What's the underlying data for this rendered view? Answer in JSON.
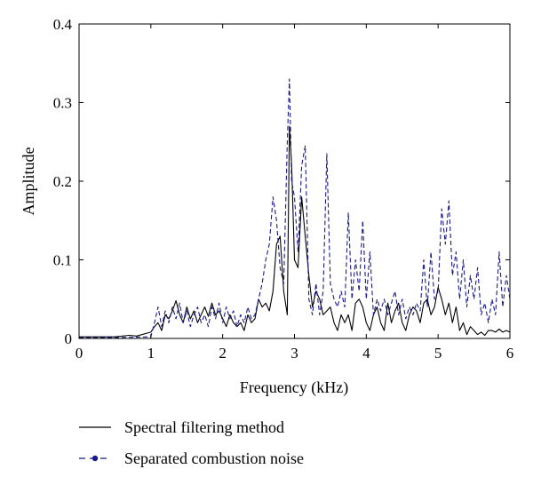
{
  "chart_data": {
    "type": "line",
    "title": "",
    "xlabel": "Frequency (kHz)",
    "ylabel": "Amplitude",
    "xlim": [
      0,
      6
    ],
    "ylim": [
      0,
      0.4
    ],
    "xticks": [
      "0",
      "1",
      "2",
      "3",
      "4",
      "5",
      "6"
    ],
    "yticks": [
      "0",
      "0.1",
      "0.2",
      "0.3",
      "0.4"
    ],
    "grid": false,
    "legend_position": "below",
    "series": [
      {
        "name": "Spectral filtering method",
        "color": "#000000",
        "style": "solid",
        "x": [
          0,
          0.5,
          0.7,
          0.8,
          1.0,
          1.05,
          1.1,
          1.15,
          1.2,
          1.25,
          1.3,
          1.35,
          1.4,
          1.45,
          1.5,
          1.55,
          1.6,
          1.65,
          1.7,
          1.75,
          1.8,
          1.85,
          1.9,
          1.95,
          2.0,
          2.05,
          2.1,
          2.15,
          2.2,
          2.25,
          2.3,
          2.35,
          2.4,
          2.45,
          2.5,
          2.55,
          2.6,
          2.65,
          2.7,
          2.75,
          2.8,
          2.85,
          2.9,
          2.93,
          2.96,
          3.0,
          3.05,
          3.1,
          3.15,
          3.2,
          3.25,
          3.3,
          3.35,
          3.4,
          3.45,
          3.5,
          3.55,
          3.6,
          3.65,
          3.7,
          3.75,
          3.8,
          3.85,
          3.9,
          3.95,
          4.0,
          4.05,
          4.1,
          4.15,
          4.2,
          4.25,
          4.3,
          4.35,
          4.4,
          4.45,
          4.5,
          4.55,
          4.6,
          4.65,
          4.7,
          4.75,
          4.8,
          4.85,
          4.9,
          4.95,
          5.0,
          5.05,
          5.1,
          5.15,
          5.2,
          5.25,
          5.3,
          5.35,
          5.4,
          5.45,
          5.5,
          5.55,
          5.6,
          5.65,
          5.7,
          5.75,
          5.8,
          5.85,
          5.9,
          5.95,
          6.0
        ],
        "y": [
          0.002,
          0.002,
          0.004,
          0.003,
          0.008,
          0.015,
          0.02,
          0.01,
          0.03,
          0.025,
          0.035,
          0.048,
          0.03,
          0.02,
          0.04,
          0.025,
          0.035,
          0.02,
          0.03,
          0.04,
          0.028,
          0.045,
          0.03,
          0.035,
          0.025,
          0.015,
          0.03,
          0.02,
          0.015,
          0.02,
          0.01,
          0.03,
          0.02,
          0.025,
          0.05,
          0.04,
          0.045,
          0.035,
          0.06,
          0.12,
          0.13,
          0.06,
          0.03,
          0.27,
          0.22,
          0.1,
          0.09,
          0.18,
          0.13,
          0.08,
          0.04,
          0.06,
          0.05,
          0.03,
          0.035,
          0.04,
          0.02,
          0.01,
          0.03,
          0.02,
          0.03,
          0.01,
          0.045,
          0.05,
          0.04,
          0.02,
          0.01,
          0.03,
          0.04,
          0.02,
          0.01,
          0.045,
          0.02,
          0.035,
          0.045,
          0.02,
          0.01,
          0.03,
          0.04,
          0.035,
          0.02,
          0.045,
          0.05,
          0.03,
          0.04,
          0.065,
          0.05,
          0.03,
          0.045,
          0.02,
          0.04,
          0.01,
          0.02,
          0.005,
          0.015,
          0.01,
          0.005,
          0.008,
          0.004,
          0.01,
          0.01,
          0.008,
          0.012,
          0.008,
          0.01,
          0.008
        ]
      },
      {
        "name": "Separated combustion noise",
        "color": "#1a1a8c",
        "style": "dashed",
        "x": [
          0,
          0.5,
          1.0,
          1.05,
          1.1,
          1.15,
          1.2,
          1.25,
          1.3,
          1.35,
          1.4,
          1.45,
          1.5,
          1.55,
          1.6,
          1.65,
          1.7,
          1.75,
          1.8,
          1.85,
          1.9,
          1.95,
          2.0,
          2.05,
          2.1,
          2.15,
          2.2,
          2.25,
          2.3,
          2.35,
          2.4,
          2.45,
          2.5,
          2.55,
          2.6,
          2.65,
          2.7,
          2.75,
          2.8,
          2.85,
          2.9,
          2.93,
          2.96,
          3.0,
          3.05,
          3.1,
          3.15,
          3.2,
          3.25,
          3.3,
          3.35,
          3.4,
          3.45,
          3.5,
          3.55,
          3.6,
          3.65,
          3.7,
          3.75,
          3.8,
          3.85,
          3.9,
          3.95,
          4.0,
          4.05,
          4.1,
          4.15,
          4.2,
          4.25,
          4.3,
          4.35,
          4.4,
          4.45,
          4.5,
          4.55,
          4.6,
          4.65,
          4.7,
          4.75,
          4.8,
          4.85,
          4.9,
          4.95,
          5.0,
          5.05,
          5.1,
          5.15,
          5.2,
          5.25,
          5.3,
          5.35,
          5.4,
          5.45,
          5.5,
          5.55,
          5.6,
          5.65,
          5.7,
          5.75,
          5.8,
          5.85,
          5.9,
          5.95,
          6.0
        ],
        "y": [
          0.001,
          0.001,
          0.002,
          0.02,
          0.04,
          0.015,
          0.035,
          0.02,
          0.04,
          0.025,
          0.045,
          0.02,
          0.035,
          0.015,
          0.03,
          0.04,
          0.02,
          0.03,
          0.015,
          0.04,
          0.025,
          0.045,
          0.02,
          0.04,
          0.025,
          0.035,
          0.015,
          0.03,
          0.02,
          0.04,
          0.025,
          0.03,
          0.05,
          0.07,
          0.1,
          0.12,
          0.18,
          0.15,
          0.09,
          0.07,
          0.25,
          0.33,
          0.2,
          0.18,
          0.11,
          0.22,
          0.245,
          0.05,
          0.03,
          0.07,
          0.03,
          0.06,
          0.235,
          0.07,
          0.05,
          0.04,
          0.06,
          0.04,
          0.16,
          0.05,
          0.1,
          0.06,
          0.15,
          0.05,
          0.11,
          0.03,
          0.05,
          0.035,
          0.05,
          0.03,
          0.045,
          0.06,
          0.03,
          0.05,
          0.025,
          0.04,
          0.03,
          0.045,
          0.035,
          0.1,
          0.04,
          0.11,
          0.05,
          0.06,
          0.165,
          0.12,
          0.175,
          0.08,
          0.11,
          0.05,
          0.1,
          0.04,
          0.08,
          0.05,
          0.09,
          0.03,
          0.045,
          0.02,
          0.05,
          0.03,
          0.11,
          0.04,
          0.08,
          0.05
        ]
      }
    ]
  }
}
